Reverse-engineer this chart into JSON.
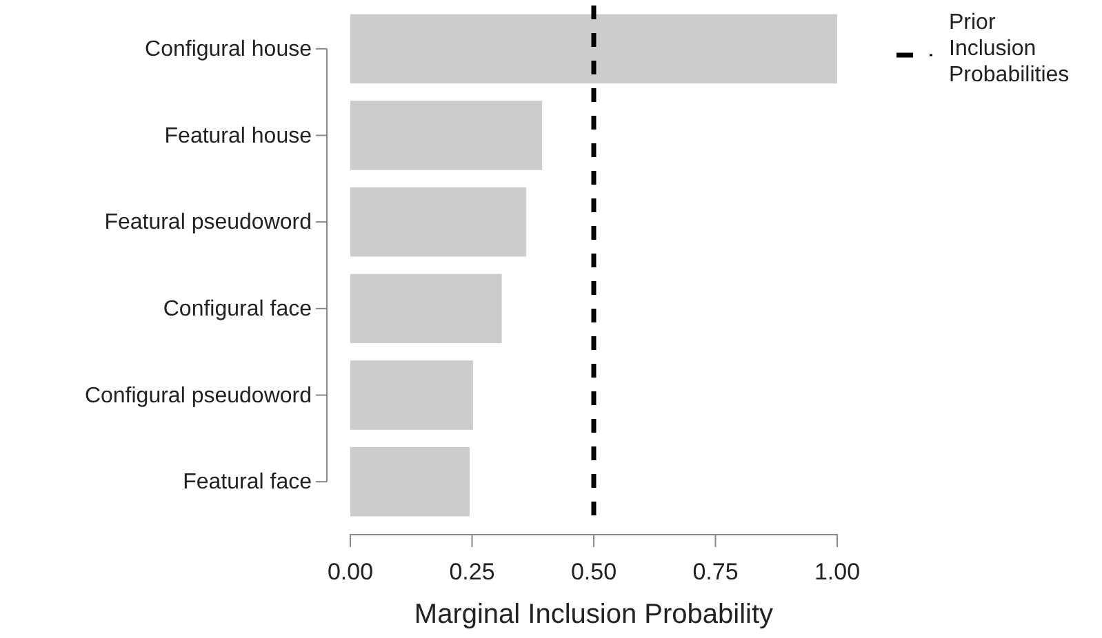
{
  "chart_data": {
    "type": "bar",
    "orientation": "horizontal",
    "xlabel": "Marginal Inclusion Probability",
    "categories": [
      "Configural house",
      "Featural house",
      "Featural pseudoword",
      "Configural face",
      "Configural pseudoword",
      "Featural face"
    ],
    "values": [
      1.0,
      0.394,
      0.361,
      0.311,
      0.252,
      0.245
    ],
    "color": "#cccccc",
    "xlim": [
      0,
      1
    ],
    "xticks": [
      {
        "value": 0,
        "label": "0.00"
      },
      {
        "value": 0.25,
        "label": "0.25"
      },
      {
        "value": 0.5,
        "label": "0.50"
      },
      {
        "value": 0.75,
        "label": "0.75"
      },
      {
        "value": 1,
        "label": "1.00"
      }
    ],
    "ref_lines": [
      {
        "axis": "x",
        "value": 0.5,
        "label": "Prior Inclusion Probabilities",
        "color": "#000000",
        "line_style": "dashed"
      }
    ],
    "legend": "right",
    "grid": false
  }
}
